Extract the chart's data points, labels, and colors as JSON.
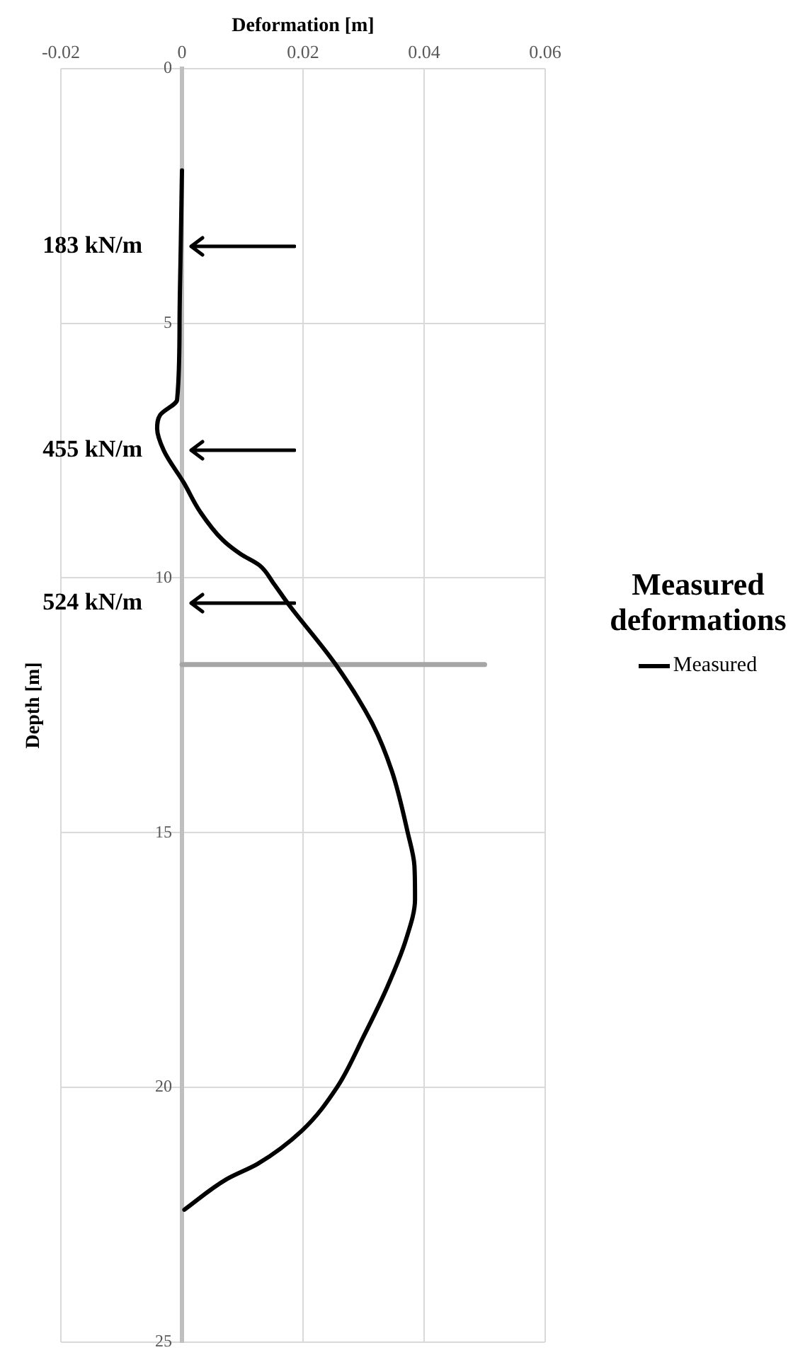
{
  "chart_data": {
    "type": "line",
    "xlabel": "Deformation [m]",
    "ylabel": "Depth [m]",
    "legend_title": "Measured deformations",
    "legend": "right",
    "grid": true,
    "marker": "none",
    "line_style": "solid",
    "xlim": [
      -0.02,
      0.06
    ],
    "xticks": [
      -0.02,
      0,
      0.02,
      0.04,
      0.06
    ],
    "ylim": [
      25,
      0
    ],
    "yticks": [
      0,
      5,
      10,
      15,
      20,
      25
    ],
    "series": [
      {
        "name": "Measured",
        "color": "#000000",
        "x": [
          0,
          -0.0002,
          -0.0004,
          -0.0008,
          -0.0036,
          -0.0041,
          -0.003,
          0.0003,
          0.003,
          0.0067,
          0.0097,
          0.0128,
          0.0151,
          0.0175,
          0.0254,
          0.0315,
          0.0347,
          0.0373,
          0.0384,
          0.0385,
          0.037,
          0.0338,
          0.03,
          0.0256,
          0.0198,
          0.0125,
          0.0074,
          0.0004
        ],
        "values": [
          2.0,
          3.5,
          5,
          6.5,
          6.8,
          7.07,
          7.5,
          8.13,
          8.7,
          9.25,
          9.53,
          9.75,
          10.1,
          10.5,
          11.7,
          12.87,
          13.8,
          15,
          15.65,
          16.3,
          17.1,
          18.06,
          19,
          20,
          20.85,
          21.5,
          21.8,
          22.4
        ]
      },
      {
        "color": "#a6a6a6",
        "x": [
          0,
          0.05
        ],
        "values": [
          11.7,
          11.7
        ]
      }
    ],
    "annotations": [
      "183 kN/m",
      "455 kN/m",
      "524 kN/m"
    ]
  }
}
